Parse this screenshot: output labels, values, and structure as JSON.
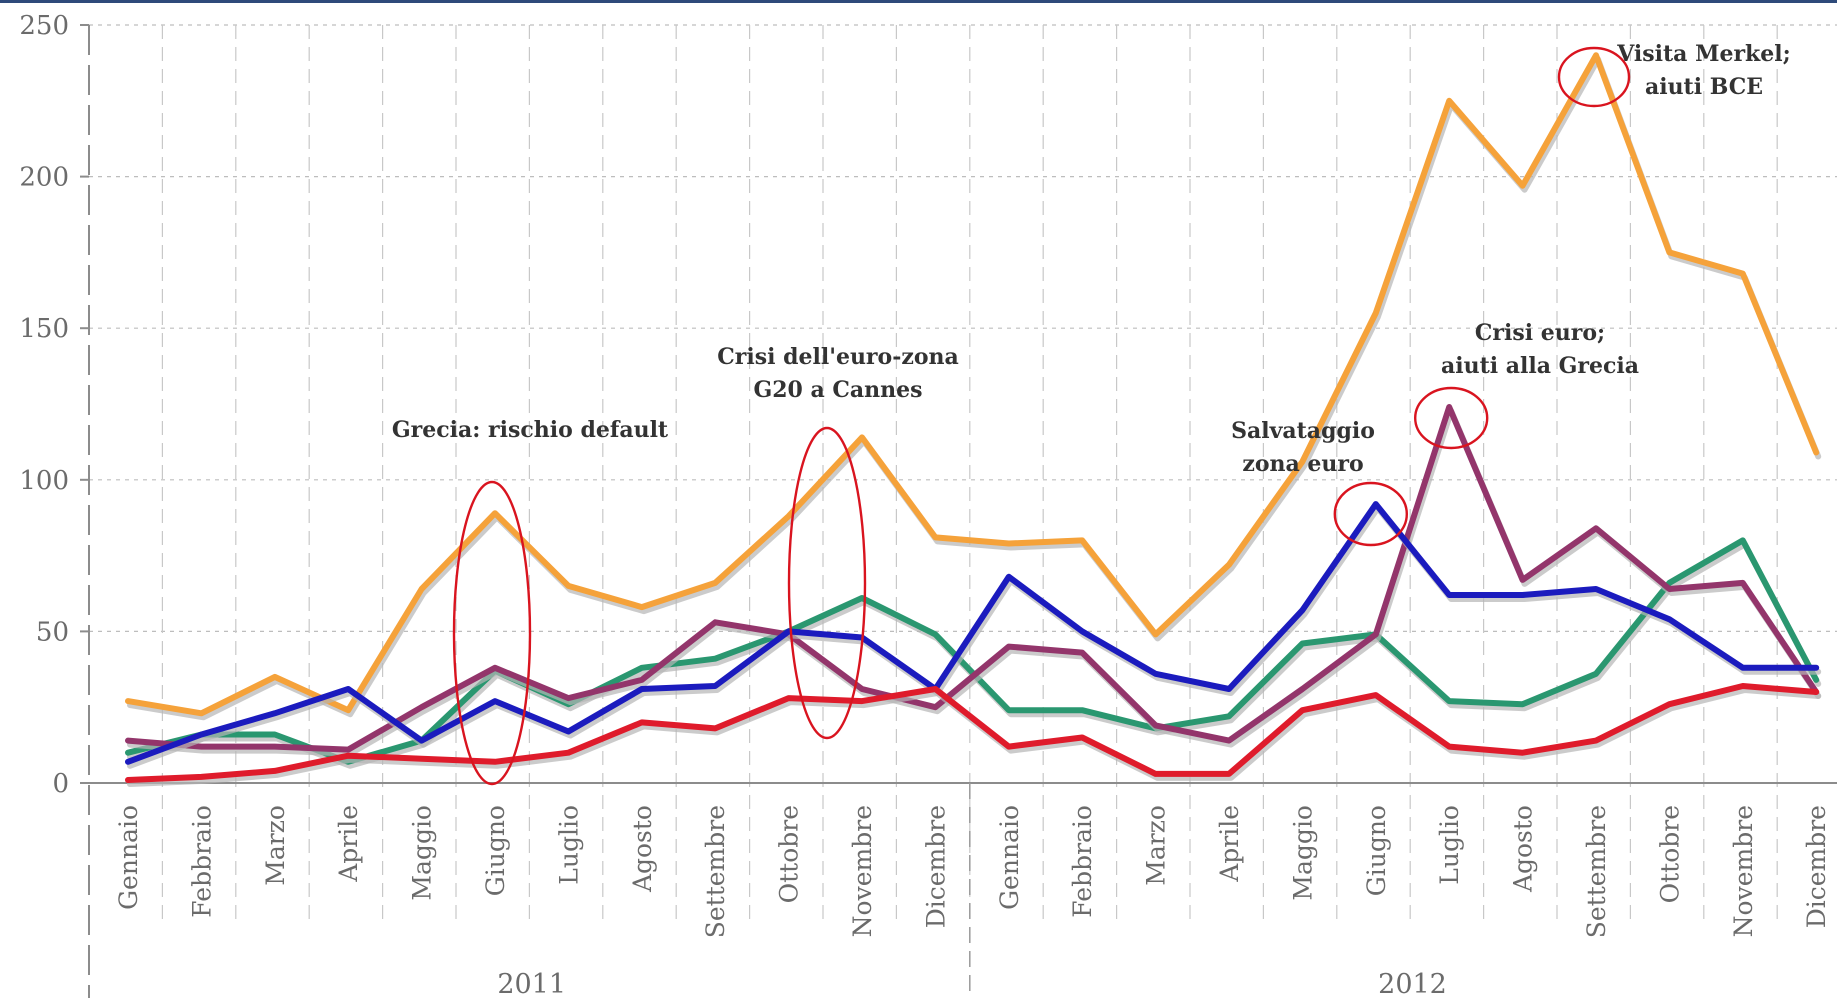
{
  "chart_data": {
    "type": "line",
    "title": "",
    "xlabel": "",
    "ylabel": "",
    "ylim": [
      0,
      250
    ],
    "yticks": [
      0,
      50,
      100,
      150,
      200,
      250
    ],
    "grid": true,
    "categories": [
      "Gennaio",
      "Febbraio",
      "Marzo",
      "Aprile",
      "Maggio",
      "Giugno",
      "Luglio",
      "Agosto",
      "Settembre",
      "Ottobre",
      "Novembre",
      "Dicembre",
      "Gennaio",
      "Febbraio",
      "Marzo",
      "Aprile",
      "Maggio",
      "Giugno",
      "Luglio",
      "Agosto",
      "Settembre",
      "Ottobre",
      "Novembre",
      "Dicembre"
    ],
    "years": [
      {
        "label": "2011",
        "start": 0,
        "end": 11
      },
      {
        "label": "2012",
        "start": 12,
        "end": 23
      }
    ],
    "series": [
      {
        "color": "#f5a23a",
        "values": [
          27,
          23,
          35,
          24,
          64,
          89,
          65,
          58,
          66,
          88,
          114,
          81,
          79,
          80,
          49,
          72,
          106,
          155,
          225,
          197,
          240,
          175,
          168,
          109
        ]
      },
      {
        "color": "#2a9770",
        "values": [
          10,
          16,
          16,
          7,
          14,
          37,
          26,
          38,
          41,
          50,
          61,
          49,
          24,
          24,
          18,
          22,
          46,
          49,
          27,
          26,
          36,
          66,
          80,
          34
        ]
      },
      {
        "color": "#93356b",
        "values": [
          14,
          12,
          12,
          11,
          25,
          38,
          28,
          34,
          53,
          49,
          31,
          25,
          45,
          43,
          19,
          14,
          31,
          49,
          124,
          67,
          84,
          64,
          66,
          30
        ]
      },
      {
        "color": "#1b1bbe",
        "values": [
          7,
          16,
          23,
          31,
          14,
          27,
          17,
          31,
          32,
          50,
          48,
          31,
          68,
          50,
          36,
          31,
          57,
          92,
          62,
          62,
          64,
          54,
          38,
          38
        ]
      },
      {
        "color": "#df1b2b",
        "values": [
          1,
          2,
          4,
          9,
          8,
          7,
          10,
          20,
          18,
          28,
          27,
          31,
          12,
          15,
          3,
          3,
          24,
          29,
          12,
          10,
          14,
          26,
          32,
          30
        ]
      }
    ],
    "annotations": [
      {
        "text": [
          "Grecia: rischio default"
        ],
        "x": 5
      },
      {
        "text": [
          "Crisi dell'euro-zona",
          "G20 a Cannes"
        ],
        "x": 10
      },
      {
        "text": [
          "Salvataggio",
          "zona euro"
        ],
        "x": 17
      },
      {
        "text": [
          "Crisi euro;",
          "aiuti alla Grecia"
        ],
        "x": 18
      },
      {
        "text": [
          "Visita Merkel;",
          "aiuti BCE"
        ],
        "x": 20
      }
    ],
    "highlight_color": "#d9141f"
  }
}
